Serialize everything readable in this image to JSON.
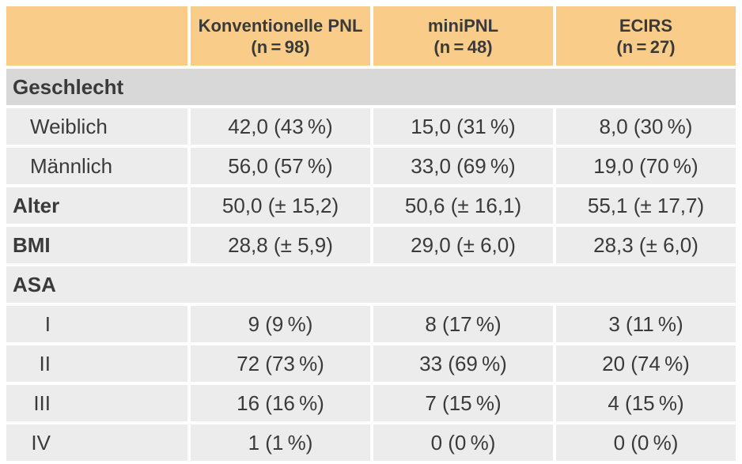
{
  "colors": {
    "header_bg": "#F9CD89",
    "section_header_bg": "#D8D8D8",
    "row_bg": "#ECECEC",
    "gap_color": "#FFFFFF",
    "text": "#3A3A3A"
  },
  "table": {
    "header": {
      "empty": "",
      "cols": [
        {
          "title": "Konventionelle PNL",
          "n": "(n = 98)"
        },
        {
          "title": "miniPNL",
          "n": "(n = 48)"
        },
        {
          "title": "ECIRS",
          "n": "(n = 27)"
        }
      ]
    },
    "rows": [
      {
        "type": "section",
        "label": "Geschlecht"
      },
      {
        "type": "data",
        "label": "Weiblich",
        "values": [
          "42,0 (43 %)",
          "15,0 (31 %)",
          "8,0 (30 %)"
        ]
      },
      {
        "type": "data",
        "label": "Männlich",
        "values": [
          "56,0 (57 %)",
          "33,0 (69 %)",
          "19,0 (70 %)"
        ]
      },
      {
        "type": "data",
        "label": "Alter",
        "values": [
          "50,0 (± 15,2)",
          "50,6 (± 16,1)",
          "55,1 (± 17,7)"
        ]
      },
      {
        "type": "data",
        "label": "BMI",
        "values": [
          "28,8 (± 5,9)",
          "29,0 (± 6,0)",
          "28,3 (± 6,0)"
        ]
      },
      {
        "type": "section",
        "label": "ASA"
      },
      {
        "type": "data",
        "label": "I",
        "values": [
          "9 (9 %)",
          "8 (17 %)",
          "3 (11 %)"
        ]
      },
      {
        "type": "data",
        "label": "II",
        "values": [
          "72 (73 %)",
          "33 (69 %)",
          "20 (74 %)"
        ]
      },
      {
        "type": "data",
        "label": "III",
        "values": [
          "16 (16 %)",
          "7 (15 %)",
          "4 (15 %)"
        ]
      },
      {
        "type": "data",
        "label": "IV",
        "values": [
          "1 (1 %)",
          "0 (0 %)",
          "0 (0 %)"
        ]
      }
    ]
  }
}
